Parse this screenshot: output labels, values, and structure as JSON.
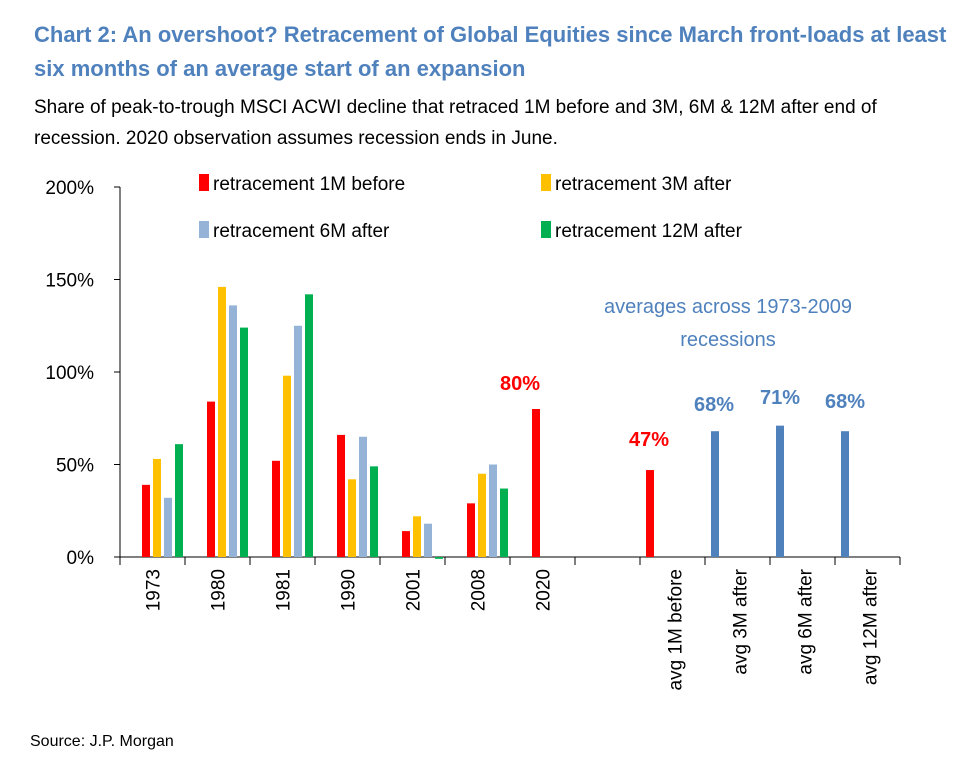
{
  "title": "Chart 2: An overshoot? Retracement of Global Equities since March front-loads at least six months of an average start of an expansion",
  "subtitle": "Share of peak-to-trough MSCI ACWI decline that retraced 1M before and 3M, 6M & 12M after end of recession. 2020 observation assumes recession ends in June.",
  "source": "Source: J.P. Morgan",
  "chart_data": {
    "type": "bar",
    "title": "Chart 2: An overshoot? Retracement of Global Equities since March front-loads at least six months of an average start of an expansion",
    "ylabel": "",
    "xlabel": "",
    "ylim": [
      0,
      200
    ],
    "yticks": [
      0,
      50,
      100,
      150,
      200
    ],
    "ytick_labels": [
      "0%",
      "50%",
      "100%",
      "150%",
      "200%"
    ],
    "categories": [
      "1973",
      "1980",
      "1981",
      "1990",
      "2001",
      "2008",
      "2020"
    ],
    "series": [
      {
        "name": "retracement 1M before",
        "color": "#ff0000",
        "values": [
          39,
          84,
          52,
          66,
          14,
          29,
          80
        ]
      },
      {
        "name": "retracement 3M after",
        "color": "#ffc000",
        "values": [
          53,
          146,
          98,
          42,
          22,
          45,
          null
        ]
      },
      {
        "name": "retracement 6M after",
        "color": "#95b3d7",
        "values": [
          32,
          136,
          125,
          65,
          18,
          50,
          null
        ]
      },
      {
        "name": "retracement 12M after",
        "color": "#00b050",
        "values": [
          61,
          124,
          142,
          49,
          -1,
          37,
          null
        ]
      }
    ],
    "averages": {
      "note_line1": "averages across 1973-2009",
      "note_line2": "recessions",
      "categories": [
        "avg 1M before",
        "avg 3M after",
        "avg 6M after",
        "avg 12M after"
      ],
      "values": [
        47,
        68,
        71,
        68
      ],
      "colors": [
        "#ff0000",
        "#4f81bd",
        "#4f81bd",
        "#4f81bd"
      ]
    },
    "data_labels": [
      {
        "text": "80%",
        "value": 80,
        "color": "#ff0000"
      },
      {
        "text": "47%",
        "value": 47,
        "color": "#ff0000"
      },
      {
        "text": "68%",
        "value": 68,
        "color": "#4f81bd"
      },
      {
        "text": "71%",
        "value": 71,
        "color": "#4f81bd"
      },
      {
        "text": "68%",
        "value": 68,
        "color": "#4f81bd"
      }
    ],
    "grid": false,
    "legend_position": "top"
  }
}
